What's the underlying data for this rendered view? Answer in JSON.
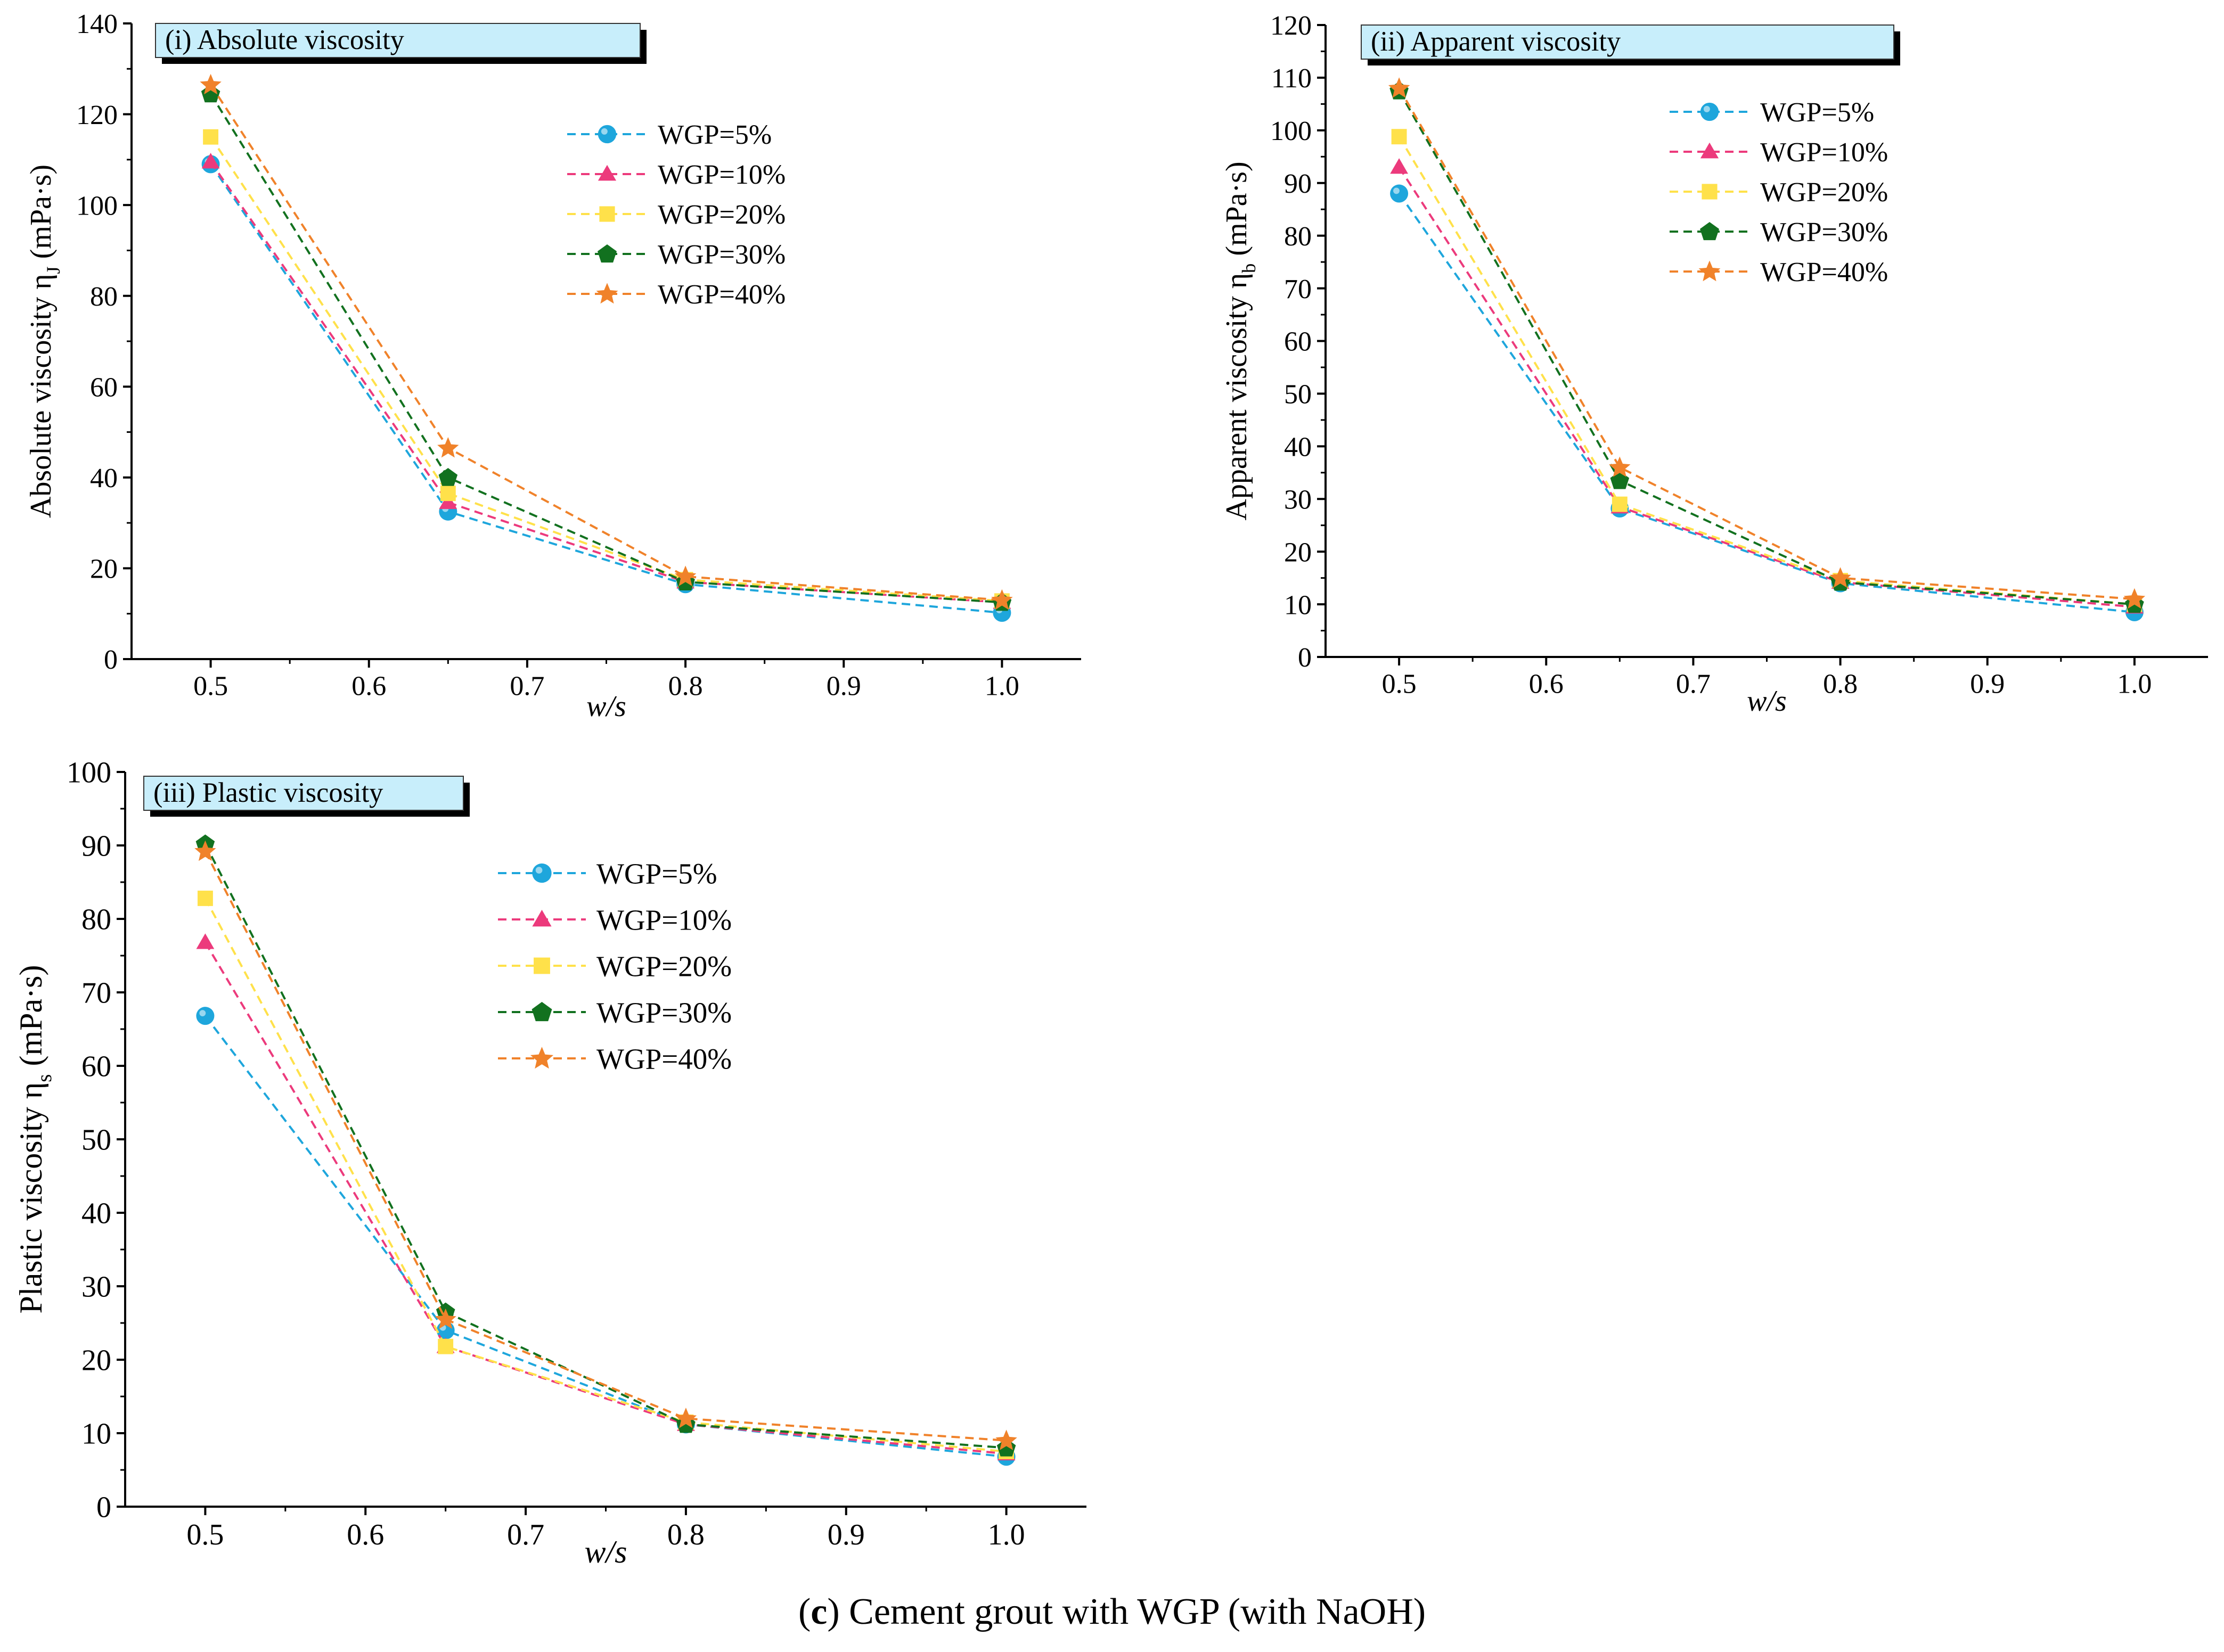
{
  "figure_caption": {
    "label": "c",
    "text": "Cement grout with WGP (with NaOH)"
  },
  "series_styles": [
    {
      "name": "WGP=5%",
      "color": "#1EA6DC",
      "marker": "circle"
    },
    {
      "name": "WGP=10%",
      "color": "#EC3A7C",
      "marker": "triangle"
    },
    {
      "name": "WGP=20%",
      "color": "#FFE14A",
      "marker": "square"
    },
    {
      "name": "WGP=30%",
      "color": "#12711F",
      "marker": "pentagon"
    },
    {
      "name": "WGP=40%",
      "color": "#F0822A",
      "marker": "star"
    }
  ],
  "chart_data": [
    {
      "type": "line",
      "title": "(i) Absolute viscosity",
      "xlabel": "w/s",
      "ylabel": "Absolute viscosity η",
      "ylabel_sub": "J",
      "ylabel_unit": " (mPa·s)",
      "x": [
        0.5,
        0.65,
        0.8,
        1.0
      ],
      "xlim": [
        0.45,
        1.05
      ],
      "xticks": [
        "0.5",
        "0.6",
        "0.7",
        "0.8",
        "0.9",
        "1.0"
      ],
      "ylim": [
        0,
        140
      ],
      "yticks": [
        "0",
        "20",
        "40",
        "60",
        "80",
        "100",
        "120",
        "140"
      ],
      "series": [
        {
          "name": "WGP=5%",
          "values": [
            109,
            32.5,
            16.5,
            10.2
          ]
        },
        {
          "name": "WGP=10%",
          "values": [
            109.5,
            34.5,
            17,
            12.5
          ]
        },
        {
          "name": "WGP=20%",
          "values": [
            115,
            36.5,
            17.5,
            12.8
          ]
        },
        {
          "name": "WGP=30%",
          "values": [
            124.5,
            40,
            17,
            12.5
          ]
        },
        {
          "name": "WGP=40%",
          "values": [
            126.5,
            46.5,
            18.2,
            13
          ]
        }
      ]
    },
    {
      "type": "line",
      "title": "(ii) Apparent viscosity",
      "xlabel": "w/s",
      "ylabel": "Apparent viscosity η",
      "ylabel_sub": "b",
      "ylabel_unit": " (mPa·s)",
      "x": [
        0.5,
        0.65,
        0.8,
        1.0
      ],
      "xlim": [
        0.45,
        1.05
      ],
      "xticks": [
        "0.5",
        "0.6",
        "0.7",
        "0.8",
        "0.9",
        "1.0"
      ],
      "ylim": [
        0,
        120
      ],
      "yticks": [
        "0",
        "10",
        "20",
        "30",
        "40",
        "50",
        "60",
        "70",
        "80",
        "90",
        "100",
        "110",
        "120"
      ],
      "series": [
        {
          "name": "WGP=5%",
          "values": [
            88,
            28.2,
            14,
            8.5
          ]
        },
        {
          "name": "WGP=10%",
          "values": [
            93,
            28.5,
            14.2,
            9.5
          ]
        },
        {
          "name": "WGP=20%",
          "values": [
            98.8,
            29,
            14.5,
            10
          ]
        },
        {
          "name": "WGP=30%",
          "values": [
            107.5,
            33.5,
            14.2,
            10
          ]
        },
        {
          "name": "WGP=40%",
          "values": [
            108,
            36,
            15,
            11
          ]
        }
      ]
    },
    {
      "type": "line",
      "title": "(iii) Plastic viscosity",
      "xlabel": "w/s",
      "ylabel": "Plastic viscosity η",
      "ylabel_sub": "s",
      "ylabel_unit": " (mPa·s)",
      "x": [
        0.5,
        0.65,
        0.8,
        1.0
      ],
      "xlim": [
        0.45,
        1.05
      ],
      "xticks": [
        "0.5",
        "0.6",
        "0.7",
        "0.8",
        "0.9",
        "1.0"
      ],
      "ylim": [
        0,
        100
      ],
      "yticks": [
        "0",
        "10",
        "20",
        "30",
        "40",
        "50",
        "60",
        "70",
        "80",
        "90",
        "100"
      ],
      "series": [
        {
          "name": "WGP=5%",
          "values": [
            66.8,
            24,
            11.2,
            6.8
          ]
        },
        {
          "name": "WGP=10%",
          "values": [
            76.8,
            21.8,
            11.2,
            7.2
          ]
        },
        {
          "name": "WGP=20%",
          "values": [
            82.8,
            21.8,
            11.5,
            7.5
          ]
        },
        {
          "name": "WGP=30%",
          "values": [
            90.2,
            26.5,
            11.2,
            8
          ]
        },
        {
          "name": "WGP=40%",
          "values": [
            89.2,
            25.5,
            12,
            9
          ]
        }
      ]
    }
  ]
}
